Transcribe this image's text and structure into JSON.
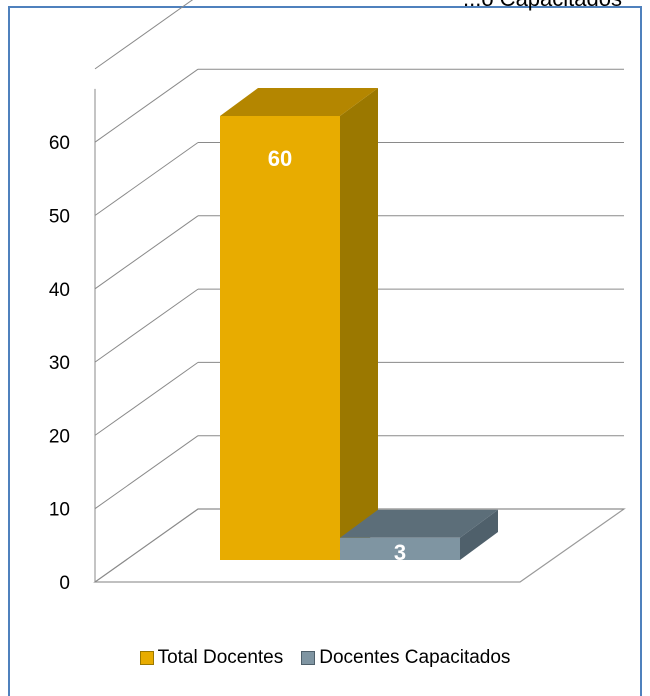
{
  "chart_data": {
    "type": "bar",
    "title": "...o              Capacitados",
    "categories": [
      "Total Docentes",
      "Docentes Capacitados"
    ],
    "series": [
      {
        "name": "Total Docentes",
        "values": [
          60,
          null
        ],
        "color": "#e8ac00"
      },
      {
        "name": "Docentes Capacitados",
        "values": [
          null,
          3
        ],
        "color": "#7f95a2"
      }
    ],
    "data_labels": [
      "60",
      "3"
    ],
    "y_ticks": [
      "0",
      "10",
      "20",
      "30",
      "40",
      "50",
      "60"
    ],
    "ylim": [
      0,
      70
    ],
    "grid": true,
    "legend_position": "bottom",
    "style": "3d"
  }
}
